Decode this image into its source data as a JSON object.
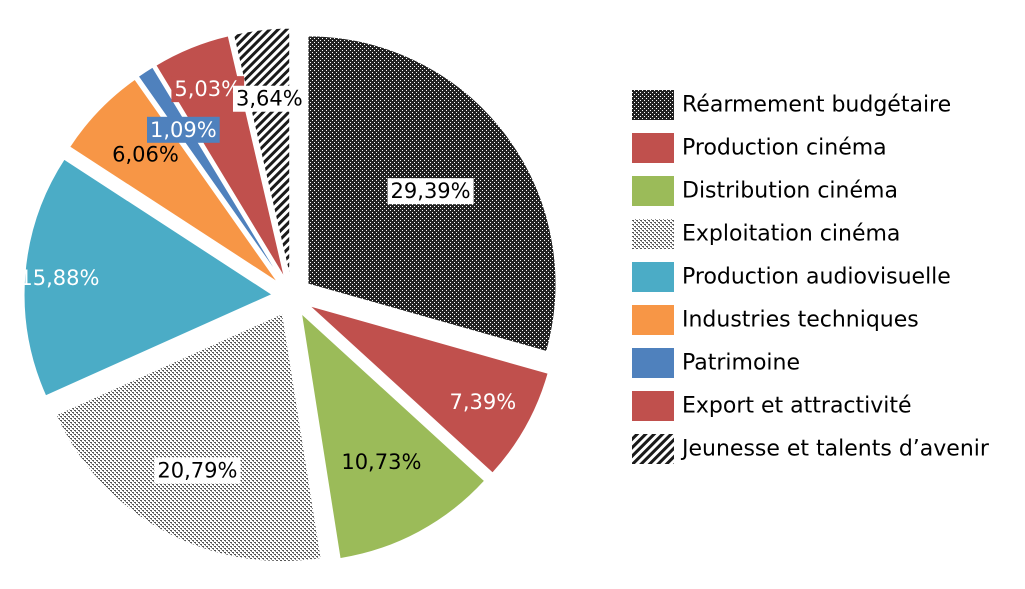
{
  "chart_data": {
    "type": "pie",
    "start_angle_deg": 0,
    "direction": "clockwise",
    "exploded": true,
    "legend_position": "right",
    "categories": [
      "Réarmement budgétaire",
      "Production cinéma",
      "Distribution cinéma",
      "Exploitation cinéma",
      "Production audiovisuelle",
      "Industries techniques",
      "Patrimoine",
      "Export et attractivité",
      "Jeunesse et talents d’avenir"
    ],
    "values": [
      29.39,
      7.39,
      10.73,
      20.79,
      15.88,
      6.06,
      1.09,
      5.03,
      3.64
    ],
    "labels": [
      "29,39%",
      "7,39%",
      "10,73%",
      "20,79%",
      "15,88%",
      "6,06%",
      "1,09%",
      "5,03%",
      "3,64%"
    ],
    "colors": [
      "#2b2b2b",
      "#c0504d",
      "#9bbb59",
      "#8a8a8a",
      "#4bacc6",
      "#f79646",
      "#4f81bd",
      "#c0504d",
      "#1a1a1a"
    ],
    "fills": [
      "dots-dark",
      "solid",
      "solid",
      "dots-light",
      "solid",
      "solid",
      "solid",
      "solid",
      "diagonal-stripes"
    ]
  }
}
